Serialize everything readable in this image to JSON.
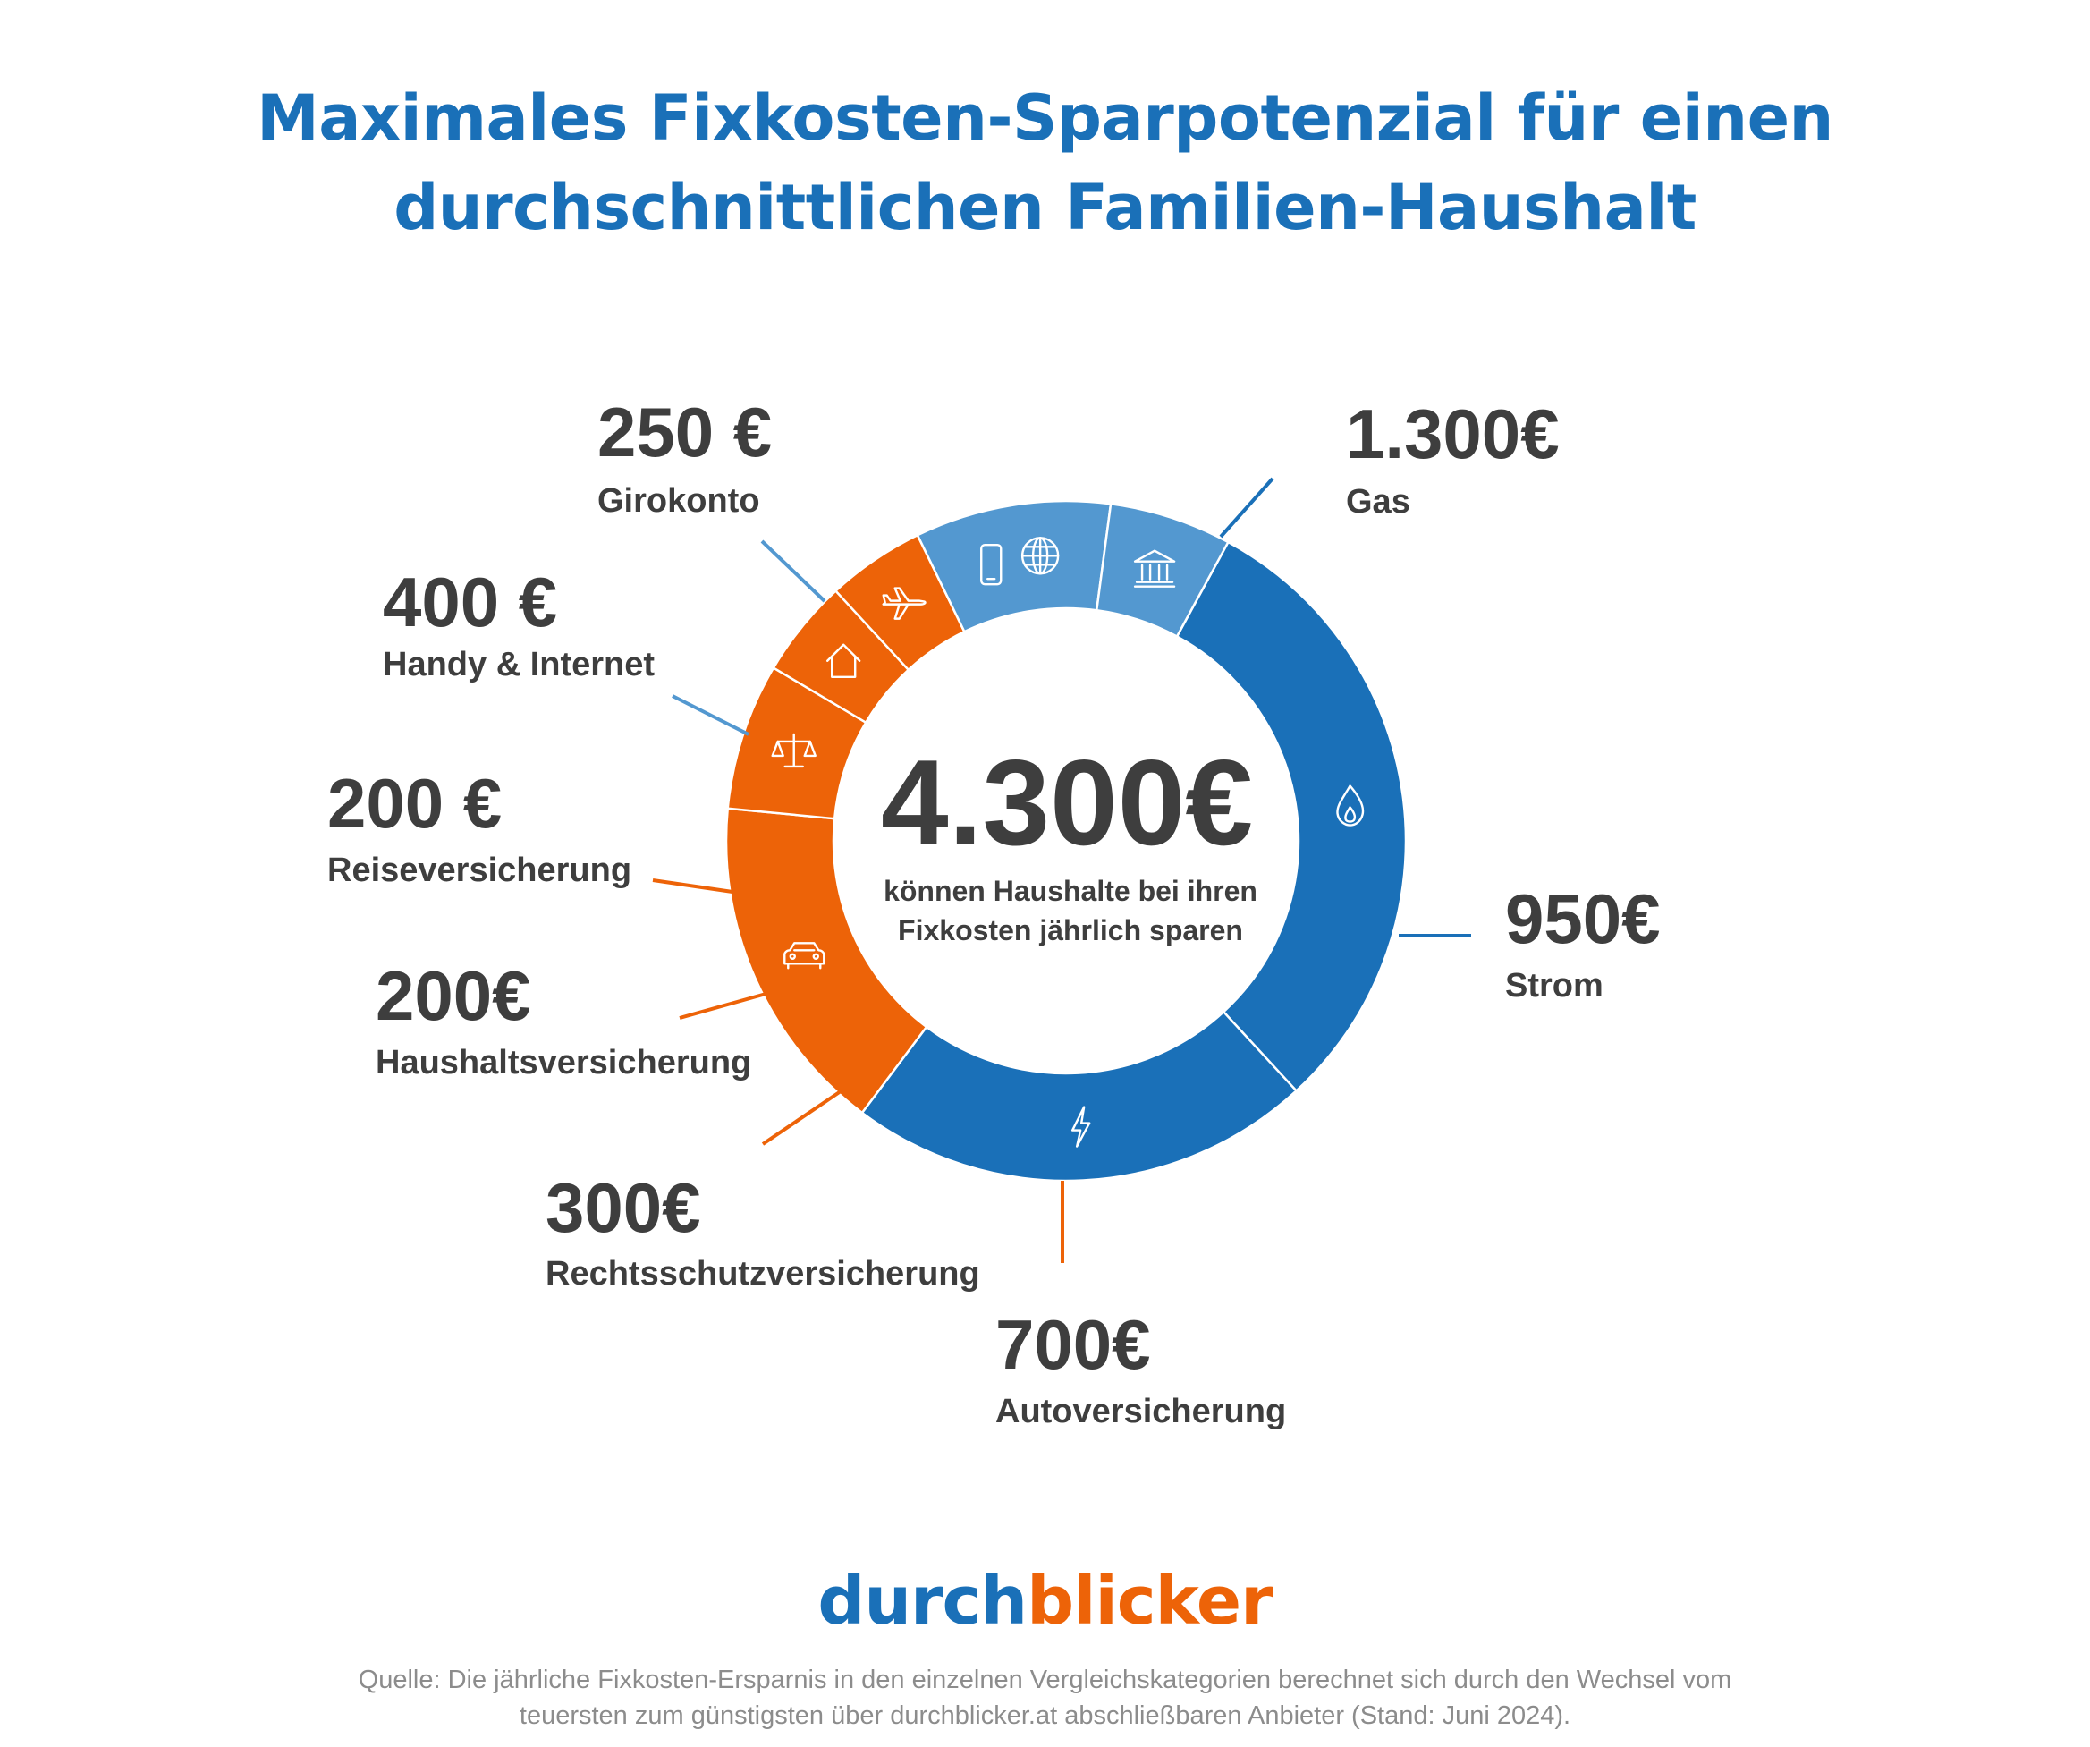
{
  "title": {
    "line1": "Maximales Fixkosten-Sparpotenzial für einen",
    "line2": "durchschnittlichen Familien-Haushalt"
  },
  "colors": {
    "title": "#1a70b8",
    "blue_dark": "#1a70b8",
    "blue_light": "#5398d0",
    "orange": "#ed6308",
    "text": "#3e3e3e",
    "source": "#8c8c8c"
  },
  "center": {
    "value": "4.300€",
    "line1": "können Haushalte bei ihren",
    "line2": "Fixkosten jährlich sparen"
  },
  "chart_data": {
    "type": "pie",
    "donut": true,
    "total": 4300,
    "unit": "€",
    "slices": [
      {
        "category": "Gas",
        "value": 1300,
        "label": "1.300€",
        "color": "#1a70b8",
        "icon": "flame-icon"
      },
      {
        "category": "Strom",
        "value": 950,
        "label": "950€",
        "color": "#1a70b8",
        "icon": "lightning-icon"
      },
      {
        "category": "Autoversicherung",
        "value": 700,
        "label": "700€",
        "color": "#ed6308",
        "icon": "car-icon"
      },
      {
        "category": "Rechtsschutzversicherung",
        "value": 300,
        "label": "300€",
        "color": "#ed6308",
        "icon": "scales-icon"
      },
      {
        "category": "Haushaltsversicherung",
        "value": 200,
        "label": "200€",
        "color": "#ed6308",
        "icon": "house-icon"
      },
      {
        "category": "Reiseversicherung",
        "value": 200,
        "label": "200 €",
        "color": "#ed6308",
        "icon": "airplane-icon"
      },
      {
        "category": "Handy & Internet",
        "value": 400,
        "label": "400 €",
        "color": "#5398d0",
        "icon": "globe-phone-icon"
      },
      {
        "category": "Girokonto",
        "value": 250,
        "label": "250 €",
        "color": "#5398d0",
        "icon": "bank-icon"
      }
    ]
  },
  "brand": {
    "part1": "durch",
    "part2": "blicker"
  },
  "source": {
    "line1": "Quelle: Die jährliche Fixkosten-Ersparnis in den einzelnen Vergleichskategorien berechnet sich durch den Wechsel vom",
    "line2": "teuersten zum günstigsten über durchblicker.at abschließbaren Anbieter (Stand: Juni 2024)."
  }
}
